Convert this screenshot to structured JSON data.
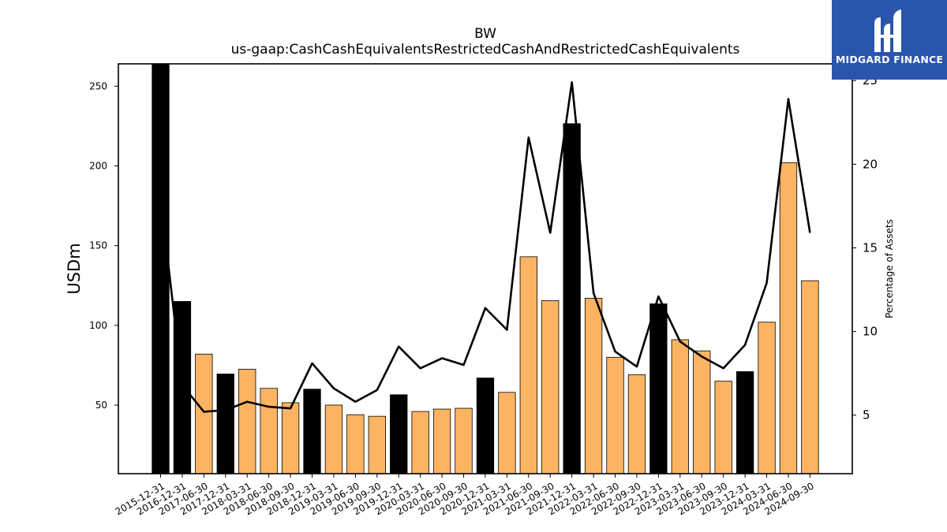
{
  "chart_data": {
    "type": "bar",
    "title": "BW",
    "subtitle": "us-gaap:CashCashEquivalentsRestrictedCashAndRestrictedCashEquivalents",
    "ylabel": "USDm",
    "ylabel_right": "Percentage of Assets",
    "ylim": [
      7,
      264
    ],
    "ylim_right": [
      1.5,
      26
    ],
    "yticks": [
      50,
      100,
      150,
      200,
      250
    ],
    "yticks_right": [
      5,
      10,
      15,
      20,
      25
    ],
    "categories": [
      "2015-12-31",
      "2016-12-31",
      "2017-06-30",
      "2017-12-31",
      "2018-03-31",
      "2018-06-30",
      "2018-09-30",
      "2018-12-31",
      "2019-03-31",
      "2019-06-30",
      "2019-09-30",
      "2019-12-31",
      "2020-03-31",
      "2020-06-30",
      "2020-09-30",
      "2020-12-31",
      "2021-03-31",
      "2021-06-30",
      "2021-09-30",
      "2021-12-31",
      "2022-03-31",
      "2022-06-30",
      "2022-09-30",
      "2022-12-31",
      "2023-03-31",
      "2023-06-30",
      "2023-09-30",
      "2023-12-31",
      "2024-03-31",
      "2024-06-30",
      "2024-09-30"
    ],
    "series": [
      {
        "values": [
          264,
          115,
          82,
          69.5,
          72.5,
          60.5,
          51.5,
          60,
          50,
          44,
          43,
          56.5,
          46,
          47.5,
          48,
          67,
          58,
          143,
          115.5,
          226.5,
          117,
          80,
          69,
          113.5,
          91,
          84,
          65,
          71,
          102,
          202,
          128
        ],
        "colors": [
          "#000000",
          "#000000",
          "#fdb462",
          "#000000",
          "#fdb462",
          "#fdb462",
          "#fdb462",
          "#000000",
          "#fdb462",
          "#fdb462",
          "#fdb462",
          "#000000",
          "#fdb462",
          "#fdb462",
          "#fdb462",
          "#000000",
          "#fdb462",
          "#fdb462",
          "#fdb462",
          "#000000",
          "#fdb462",
          "#fdb462",
          "#fdb462",
          "#000000",
          "#fdb462",
          "#fdb462",
          "#fdb462",
          "#000000",
          "#fdb462",
          "#fdb462",
          "#fdb462"
        ]
      },
      {
        "type": "line",
        "axis": "right",
        "color": "#000000",
        "values": [
          18.0,
          6.8,
          5.2,
          5.3,
          5.8,
          5.5,
          5.4,
          8.1,
          6.6,
          5.8,
          6.5,
          9.1,
          7.8,
          8.4,
          8.0,
          11.4,
          10.1,
          21.6,
          15.9,
          24.9,
          12.3,
          8.8,
          7.9,
          12.1,
          9.4,
          8.5,
          7.8,
          9.2,
          12.9,
          23.9,
          15.9
        ]
      }
    ],
    "grid": false,
    "legend": "none"
  },
  "logo": {
    "text": "MIDGARD FINANCE",
    "color": "#2a55ad"
  }
}
